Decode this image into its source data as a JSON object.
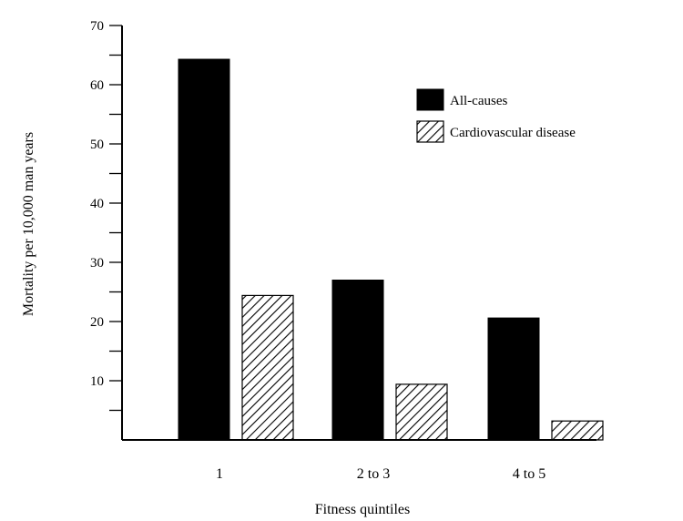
{
  "chart_data": {
    "type": "bar",
    "title": "",
    "xlabel": "Fitness quintiles",
    "ylabel": "Mortality per 10,000 man years",
    "categories": [
      "1",
      "2 to 3",
      "4 to 5"
    ],
    "series": [
      {
        "name": "All-causes",
        "values": [
          64.3,
          27.0,
          20.6
        ],
        "fill": "solid",
        "color": "#000000"
      },
      {
        "name": "Cardiovascular disease",
        "values": [
          24.4,
          9.4,
          3.2
        ],
        "fill": "hatched",
        "color": "#000000"
      }
    ],
    "ylim": [
      0,
      70
    ],
    "yticks": [
      10,
      20,
      30,
      40,
      50,
      60,
      70
    ],
    "minor_ticks": true,
    "grid": false,
    "legend_position": "top-right"
  }
}
